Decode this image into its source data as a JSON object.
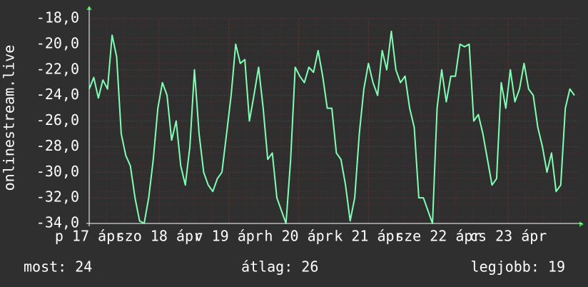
{
  "chart_data": {
    "type": "line",
    "y_label": "onlinestream.live",
    "x_labels": [
      "p 17 ápr",
      "szo 18 ápr",
      "v 19 ápr",
      "h 20 ápr",
      "k 21 ápr",
      "sze 22 ápr",
      "cs 23 ápr"
    ],
    "values": [
      -23.5,
      -22.6,
      -24.2,
      -22.8,
      -23.5,
      -19.3,
      -21,
      -27,
      -28.7,
      -29.5,
      -32,
      -33.8,
      -34,
      -32,
      -29,
      -25,
      -23,
      -24,
      -27.5,
      -26,
      -29.5,
      -31,
      -28,
      -22,
      -27,
      -30,
      -31,
      -31.5,
      -30.5,
      -30,
      -27,
      -24,
      -20,
      -21.5,
      -21.2,
      -26,
      -24,
      -21.8,
      -25,
      -29,
      -28.5,
      -32,
      -33,
      -34,
      -29,
      -21.8,
      -22.5,
      -23,
      -21.8,
      -22.2,
      -20.5,
      -22.5,
      -25,
      -25,
      -28.5,
      -29,
      -31,
      -33.8,
      -32,
      -27,
      -23.5,
      -21.5,
      -23,
      -24,
      -20.5,
      -22,
      -19,
      -22,
      -23,
      -22.5,
      -25,
      -26.5,
      -32,
      -32,
      -33,
      -34,
      -25,
      -22,
      -24.5,
      -22.5,
      -22.5,
      -20,
      -20.2,
      -20,
      -26,
      -25.5,
      -27,
      -29,
      -31,
      -30.5,
      -23,
      -25,
      -22,
      -24.5,
      -23.5,
      -21.5,
      -23.5,
      -24,
      -26.5,
      -28,
      -30,
      -28.5,
      -31.5,
      -31,
      -25,
      -23.5,
      -24
    ],
    "color": "#80ffb4",
    "ylim": [
      -34,
      -18
    ],
    "yticks": [
      {
        "value": -34,
        "label": "-34,0"
      },
      {
        "value": -32,
        "label": "-32,0"
      },
      {
        "value": -30,
        "label": "-30,0"
      },
      {
        "value": -28,
        "label": "-28,0"
      },
      {
        "value": -26,
        "label": "-26,0"
      },
      {
        "value": -24,
        "label": "-24,0"
      },
      {
        "value": -22,
        "label": "-22,0"
      },
      {
        "value": -20,
        "label": "-20,0"
      },
      {
        "value": -18,
        "label": "-18,0"
      }
    ],
    "grid": true,
    "footer": {
      "current": "most: 24",
      "average": "átlag: 26",
      "max": "legjobb: 19"
    }
  }
}
